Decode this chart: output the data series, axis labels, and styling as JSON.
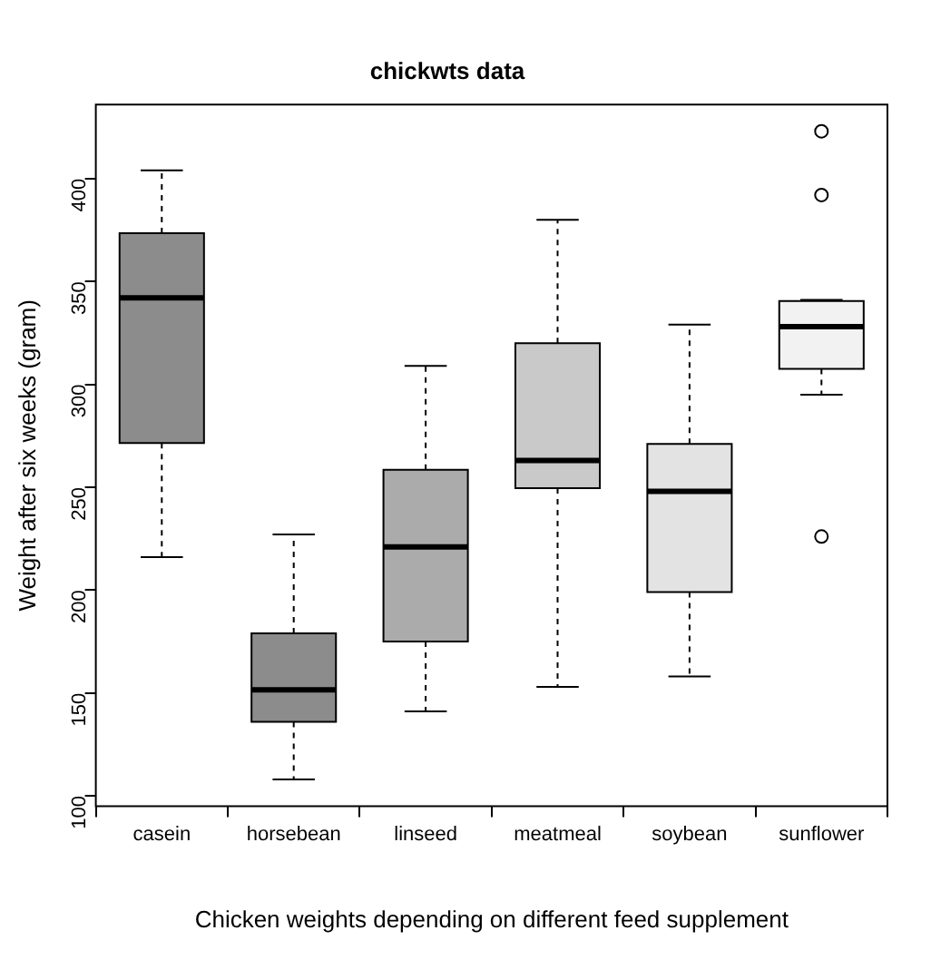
{
  "chart_data": {
    "type": "box",
    "title": "chickwts data",
    "xlabel": "Chicken weights depending on different feed supplement",
    "ylabel": "Weight after six weeks (gram)",
    "categories": [
      "casein",
      "horsebean",
      "linseed",
      "meatmeal",
      "soybean",
      "sunflower"
    ],
    "colors": [
      "#8c8c8c",
      "#8c8c8c",
      "#ababab",
      "#c9c9c9",
      "#e3e3e3",
      "#f2f2f2"
    ],
    "boxes": [
      {
        "low": 216,
        "q1": 271.5,
        "median": 342,
        "q3": 373.5,
        "high": 404
      },
      {
        "low": 108,
        "q1": 136,
        "median": 151.5,
        "q3": 179,
        "high": 227
      },
      {
        "low": 141,
        "q1": 175,
        "median": 221,
        "q3": 258.5,
        "high": 309
      },
      {
        "low": 153,
        "q1": 249.5,
        "median": 263,
        "q3": 320,
        "high": 380
      },
      {
        "low": 158,
        "q1": 199,
        "median": 248,
        "q3": 271,
        "high": 329
      },
      {
        "low": 295,
        "q1": 307.5,
        "median": 328,
        "q3": 340.5,
        "high": 341,
        "outliers": [
          226,
          392,
          423
        ]
      }
    ],
    "ylim": [
      95,
      436
    ],
    "yticks": [
      100,
      150,
      200,
      250,
      300,
      350,
      400
    ],
    "grid": false,
    "legend": false
  }
}
